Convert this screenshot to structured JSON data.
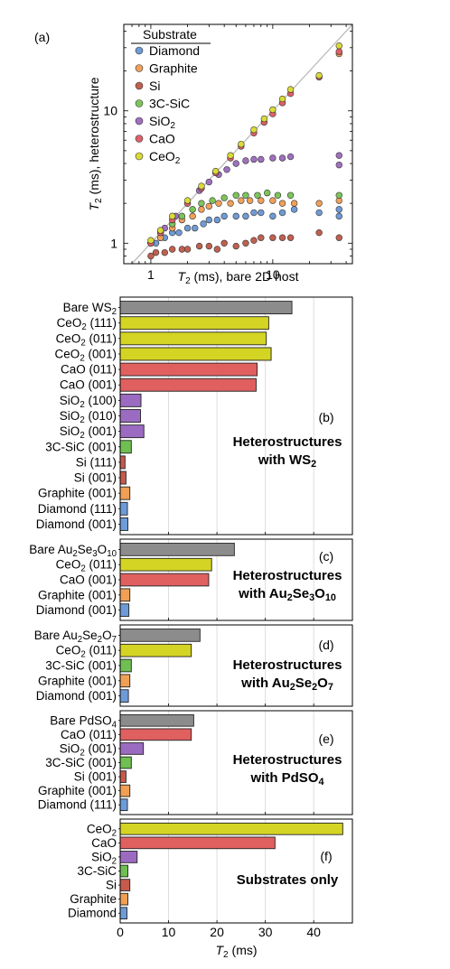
{
  "chart_data": [
    {
      "type": "scatter",
      "panel_label": "(a)",
      "xlabel": "T_2 (ms), bare 2D host",
      "ylabel": "T_2 (ms), heterostructure",
      "xscale": "log",
      "yscale": "log",
      "xlim": [
        0.6,
        45
      ],
      "ylim": [
        0.7,
        45
      ],
      "xticks": [
        1,
        10
      ],
      "yticks": [
        1,
        10
      ],
      "diagonal_reference": true,
      "legend_title": "Substrate",
      "legend_position": "top-left",
      "series": [
        {
          "name": "Diamond",
          "color": "#6f9bd6",
          "points": [
            [
              1.0,
              1.0
            ],
            [
              1.1,
              1.0
            ],
            [
              1.2,
              1.1
            ],
            [
              1.3,
              1.1
            ],
            [
              1.5,
              1.2
            ],
            [
              1.7,
              1.2
            ],
            [
              2.0,
              1.3
            ],
            [
              2.3,
              1.3
            ],
            [
              2.7,
              1.4
            ],
            [
              3.0,
              1.5
            ],
            [
              3.5,
              1.5
            ],
            [
              4.0,
              1.6
            ],
            [
              5.0,
              1.6
            ],
            [
              6.0,
              1.6
            ],
            [
              7.0,
              1.7
            ],
            [
              8.0,
              1.7
            ],
            [
              10.0,
              1.6
            ],
            [
              12.0,
              1.7
            ],
            [
              15.0,
              1.8
            ],
            [
              24.0,
              1.7
            ],
            [
              35.0,
              1.8
            ],
            [
              35.0,
              1.6
            ]
          ]
        },
        {
          "name": "Graphite",
          "color": "#f0a05a",
          "points": [
            [
              1.0,
              1.0
            ],
            [
              1.2,
              1.1
            ],
            [
              1.5,
              1.3
            ],
            [
              1.8,
              1.5
            ],
            [
              2.2,
              1.6
            ],
            [
              2.6,
              1.8
            ],
            [
              3.0,
              1.9
            ],
            [
              3.6,
              2.0
            ],
            [
              4.5,
              2.0
            ],
            [
              5.5,
              2.1
            ],
            [
              6.5,
              2.1
            ],
            [
              8.0,
              2.1
            ],
            [
              10.0,
              2.1
            ],
            [
              12.0,
              2.0
            ],
            [
              15.0,
              2.0
            ],
            [
              24.0,
              2.0
            ],
            [
              35.0,
              2.1
            ],
            [
              35.0,
              27.0
            ]
          ]
        },
        {
          "name": "Si",
          "color": "#c06050",
          "points": [
            [
              1.0,
              0.8
            ],
            [
              1.1,
              0.85
            ],
            [
              1.3,
              0.85
            ],
            [
              1.5,
              0.9
            ],
            [
              1.8,
              0.9
            ],
            [
              2.0,
              0.9
            ],
            [
              2.5,
              0.95
            ],
            [
              3.0,
              0.95
            ],
            [
              3.5,
              0.9
            ],
            [
              4.0,
              1.0
            ],
            [
              5.0,
              0.95
            ],
            [
              6.0,
              1.0
            ],
            [
              7.0,
              1.05
            ],
            [
              8.0,
              1.1
            ],
            [
              10.0,
              1.1
            ],
            [
              12.0,
              1.1
            ],
            [
              14.0,
              1.1
            ],
            [
              24.0,
              1.2
            ],
            [
              35.0,
              1.1
            ]
          ]
        },
        {
          "name": "3C-SiC",
          "color": "#7dc55a",
          "points": [
            [
              1.0,
              1.0
            ],
            [
              1.2,
              1.2
            ],
            [
              1.5,
              1.4
            ],
            [
              1.8,
              1.6
            ],
            [
              2.2,
              1.8
            ],
            [
              2.6,
              2.0
            ],
            [
              3.2,
              2.1
            ],
            [
              4.0,
              2.2
            ],
            [
              5.0,
              2.3
            ],
            [
              6.0,
              2.3
            ],
            [
              7.5,
              2.3
            ],
            [
              9.0,
              2.4
            ],
            [
              11.0,
              2.3
            ],
            [
              14.0,
              2.3
            ],
            [
              35.0,
              2.3
            ]
          ]
        },
        {
          "name": "SiO2",
          "color": "#a070c0",
          "points": [
            [
              1.0,
              1.0
            ],
            [
              1.3,
              1.3
            ],
            [
              1.6,
              1.6
            ],
            [
              2.0,
              2.0
            ],
            [
              2.5,
              2.5
            ],
            [
              3.0,
              2.9
            ],
            [
              3.6,
              3.3
            ],
            [
              4.2,
              3.6
            ],
            [
              5.0,
              4.0
            ],
            [
              6.0,
              4.2
            ],
            [
              7.0,
              4.3
            ],
            [
              8.0,
              4.3
            ],
            [
              10.0,
              4.4
            ],
            [
              12.0,
              4.4
            ],
            [
              14.0,
              4.5
            ],
            [
              35.0,
              4.6
            ],
            [
              35.0,
              3.9
            ]
          ]
        },
        {
          "name": "CaO",
          "color": "#e06068",
          "points": [
            [
              1.0,
              1.0
            ],
            [
              1.2,
              1.2
            ],
            [
              1.5,
              1.5
            ],
            [
              2.0,
              2.0
            ],
            [
              2.6,
              2.6
            ],
            [
              3.4,
              3.4
            ],
            [
              4.5,
              4.4
            ],
            [
              5.5,
              5.4
            ],
            [
              7.0,
              6.8
            ],
            [
              8.5,
              8.2
            ],
            [
              10.0,
              9.5
            ],
            [
              12.0,
              11.5
            ],
            [
              14.0,
              13.5
            ],
            [
              24.0,
              18.0
            ],
            [
              35.0,
              28.0
            ]
          ]
        },
        {
          "name": "CeO2",
          "color": "#dada38",
          "points": [
            [
              1.0,
              1.05
            ],
            [
              1.2,
              1.25
            ],
            [
              1.5,
              1.6
            ],
            [
              2.0,
              2.1
            ],
            [
              2.6,
              2.7
            ],
            [
              3.4,
              3.5
            ],
            [
              4.5,
              4.6
            ],
            [
              5.5,
              5.6
            ],
            [
              7.0,
              7.2
            ],
            [
              8.5,
              8.7
            ],
            [
              10.0,
              10.2
            ],
            [
              12.0,
              12.3
            ],
            [
              14.0,
              14.5
            ],
            [
              24.0,
              18.5
            ],
            [
              35.0,
              31.0
            ]
          ]
        }
      ]
    },
    {
      "type": "bar",
      "orientation": "horizontal",
      "panel_label": "(b)",
      "annotation": [
        "Heterostructures",
        "with WS₂"
      ],
      "categories": [
        "Bare WS₂",
        "CeO₂ (111)",
        "CeO₂ (011)",
        "CeO₂ (001)",
        "CaO (011)",
        "CaO (001)",
        "SiO₂ (100)",
        "SiO₂ (010)",
        "SiO₂ (001)",
        "3C-SiC (001)",
        "Si (111)",
        "Si (001)",
        "Graphite (001)",
        "Diamond (111)",
        "Diamond (001)"
      ],
      "values": [
        35.5,
        30.7,
        30.2,
        31.2,
        28.3,
        28.1,
        4.3,
        4.2,
        4.9,
        2.3,
        1.0,
        1.2,
        2.0,
        1.5,
        1.6
      ],
      "colors": [
        "#8c8c8c",
        "#d4d424",
        "#d4d424",
        "#d4d424",
        "#e06060",
        "#e06060",
        "#9b6bc1",
        "#9b6bc1",
        "#9b6bc1",
        "#6fbf52",
        "#c65a4c",
        "#c65a4c",
        "#f0a055",
        "#6e9bd8",
        "#6e9bd8"
      ],
      "xlim": [
        0,
        48
      ]
    },
    {
      "type": "bar",
      "orientation": "horizontal",
      "panel_label": "(c)",
      "annotation": [
        "Heterostructures",
        "with Au₂Se₃O₁₀"
      ],
      "categories": [
        "Bare Au₂Se₃O₁₀",
        "CeO₂ (011)",
        "CaO (001)",
        "Graphite (001)",
        "Diamond (001)"
      ],
      "values": [
        23.6,
        18.9,
        18.3,
        2.0,
        1.8
      ],
      "colors": [
        "#8c8c8c",
        "#d4d424",
        "#e06060",
        "#f0a055",
        "#6e9bd8"
      ],
      "xlim": [
        0,
        48
      ]
    },
    {
      "type": "bar",
      "orientation": "horizontal",
      "panel_label": "(d)",
      "annotation": [
        "Heterostructures",
        "with Au₂Se₂O₇"
      ],
      "categories": [
        "Bare Au₂Se₂O₇",
        "CeO₂ (011)",
        "3C-SiC (001)",
        "Graphite (001)",
        "Diamond (001)"
      ],
      "values": [
        16.5,
        14.7,
        2.3,
        2.0,
        1.7
      ],
      "colors": [
        "#8c8c8c",
        "#d4d424",
        "#6fbf52",
        "#f0a055",
        "#6e9bd8"
      ],
      "xlim": [
        0,
        48
      ]
    },
    {
      "type": "bar",
      "orientation": "horizontal",
      "panel_label": "(e)",
      "annotation": [
        "Heterostructures",
        "with PdSO₄"
      ],
      "categories": [
        "Bare PdSO₄",
        "CaO (011)",
        "SiO₂ (001)",
        "3C-SiC (001)",
        "Si (001)",
        "Graphite (001)",
        "Diamond (111)"
      ],
      "values": [
        15.2,
        14.7,
        4.8,
        2.3,
        1.2,
        2.0,
        1.5
      ],
      "colors": [
        "#8c8c8c",
        "#e06060",
        "#9b6bc1",
        "#6fbf52",
        "#c65a4c",
        "#f0a055",
        "#6e9bd8"
      ],
      "xlim": [
        0,
        48
      ]
    },
    {
      "type": "bar",
      "orientation": "horizontal",
      "panel_label": "(f)",
      "annotation": [
        "Substrates only"
      ],
      "categories": [
        "CeO₂",
        "CaO",
        "SiO₂",
        "3C-SiC",
        "Si",
        "Graphite",
        "Diamond"
      ],
      "values": [
        46.0,
        32.0,
        3.5,
        1.6,
        2.0,
        1.6,
        1.4
      ],
      "colors": [
        "#d4d424",
        "#e06060",
        "#9b6bc1",
        "#6fbf52",
        "#c65a4c",
        "#f0a055",
        "#6e9bd8"
      ],
      "xlim": [
        0,
        48
      ],
      "xticks": [
        0,
        10,
        20,
        30,
        40
      ],
      "xlabel": "T_2 (ms)",
      "grid": true
    }
  ]
}
